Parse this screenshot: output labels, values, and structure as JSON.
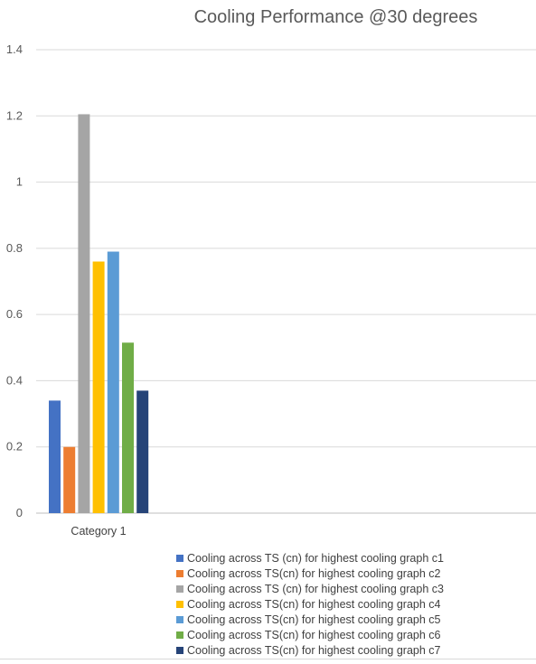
{
  "chart_data": {
    "type": "bar",
    "title": "Cooling Performance @30 degrees",
    "categories": [
      "Category 1"
    ],
    "ylim": [
      0,
      1.4
    ],
    "yticks": [
      0,
      0.2,
      0.4,
      0.6,
      0.8,
      1,
      1.2,
      1.4
    ],
    "ytick_labels": [
      "0",
      "0.2",
      "0.4",
      "0.6",
      "0.8",
      "1",
      "1.2",
      "1.4"
    ],
    "grid": true,
    "legend_position": "bottom",
    "series": [
      {
        "name": "Cooling across TS (cn) for highest cooling graph c1",
        "values": [
          0.34
        ],
        "color": "#4472C4"
      },
      {
        "name": "Cooling across TS(cn) for highest cooling graph c2",
        "values": [
          0.2
        ],
        "color": "#ED7D31"
      },
      {
        "name": "Cooling across TS (cn) for highest cooling graph c3",
        "values": [
          1.205
        ],
        "color": "#A5A5A5"
      },
      {
        "name": "Cooling across TS(cn) for highest cooling graph c4",
        "values": [
          0.76
        ],
        "color": "#FFC000"
      },
      {
        "name": "Cooling across TS(cn) for highest cooling graph c5",
        "values": [
          0.79
        ],
        "color": "#5B9BD5"
      },
      {
        "name": "Cooling across TS(cn) for highest cooling graph c6",
        "values": [
          0.515
        ],
        "color": "#70AD47"
      },
      {
        "name": "Cooling across TS(cn) for highest cooling graph c7",
        "values": [
          0.37
        ],
        "color": "#264478"
      }
    ]
  }
}
